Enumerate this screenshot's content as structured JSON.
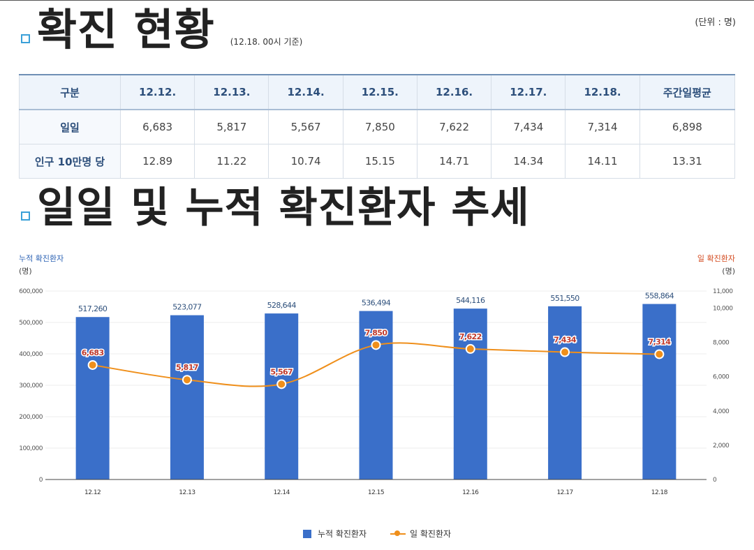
{
  "header": {
    "unit": "(단위 : 명)",
    "title": "확진 현황",
    "basis": "(12.18. 00시 기준)"
  },
  "table": {
    "headers": [
      "구분",
      "12.12.",
      "12.13.",
      "12.14.",
      "12.15.",
      "12.16.",
      "12.17.",
      "12.18.",
      "주간일평균"
    ],
    "rows": [
      {
        "label": "일일",
        "values": [
          "6,683",
          "5,817",
          "5,567",
          "7,850",
          "7,622",
          "7,434",
          "7,314",
          "6,898"
        ]
      },
      {
        "label": "인구 10만명 당",
        "values": [
          "12.89",
          "11.22",
          "10.74",
          "15.15",
          "14.71",
          "14.34",
          "14.11",
          "13.31"
        ]
      }
    ]
  },
  "section2": {
    "title": "일일 및 누적 확진환자 추세"
  },
  "chart_data": {
    "type": "bar",
    "categories": [
      "12.12",
      "12.13",
      "12.14",
      "12.15",
      "12.16",
      "12.17",
      "12.18"
    ],
    "series": [
      {
        "name": "누적 확진환자",
        "type": "bar",
        "axis": "left",
        "values": [
          517260,
          523077,
          528644,
          536494,
          544116,
          551550,
          558864
        ],
        "labels": [
          "517,260",
          "523,077",
          "528,644",
          "536,494",
          "544,116",
          "551,550",
          "558,864"
        ]
      },
      {
        "name": "일 확진환자",
        "type": "line",
        "axis": "right",
        "values": [
          6683,
          5817,
          5567,
          7850,
          7622,
          7434,
          7314
        ],
        "labels": [
          "6,683",
          "5,817",
          "5,567",
          "7,850",
          "7,622",
          "7,434",
          "7,314"
        ]
      }
    ],
    "y_left": {
      "label": "누적 확진환자",
      "unit": "(명)",
      "ylim": [
        0,
        600000
      ],
      "ticks": [
        0,
        100000,
        200000,
        300000,
        400000,
        500000,
        600000
      ],
      "tick_labels": [
        "0",
        "100,000",
        "200,000",
        "300,000",
        "400,000",
        "500,000",
        "600,000"
      ]
    },
    "y_right": {
      "label": "일 확진환자",
      "unit": "(명)",
      "ylim": [
        0,
        11000
      ],
      "ticks": [
        0,
        2000,
        4000,
        6000,
        8000,
        10000,
        11000
      ],
      "tick_labels": [
        "0",
        "2,000",
        "4,000",
        "6,000",
        "8,000",
        "10,000",
        "11,000"
      ]
    },
    "grid": true,
    "legend": "bottom",
    "colors": {
      "bar": "#3a6fc9",
      "line": "#ef8f1b",
      "left_axis_label": "#2f64b5",
      "right_axis_label": "#d34a1f",
      "bar_label": "#2d4f7b",
      "line_label": "#c0392b"
    }
  }
}
